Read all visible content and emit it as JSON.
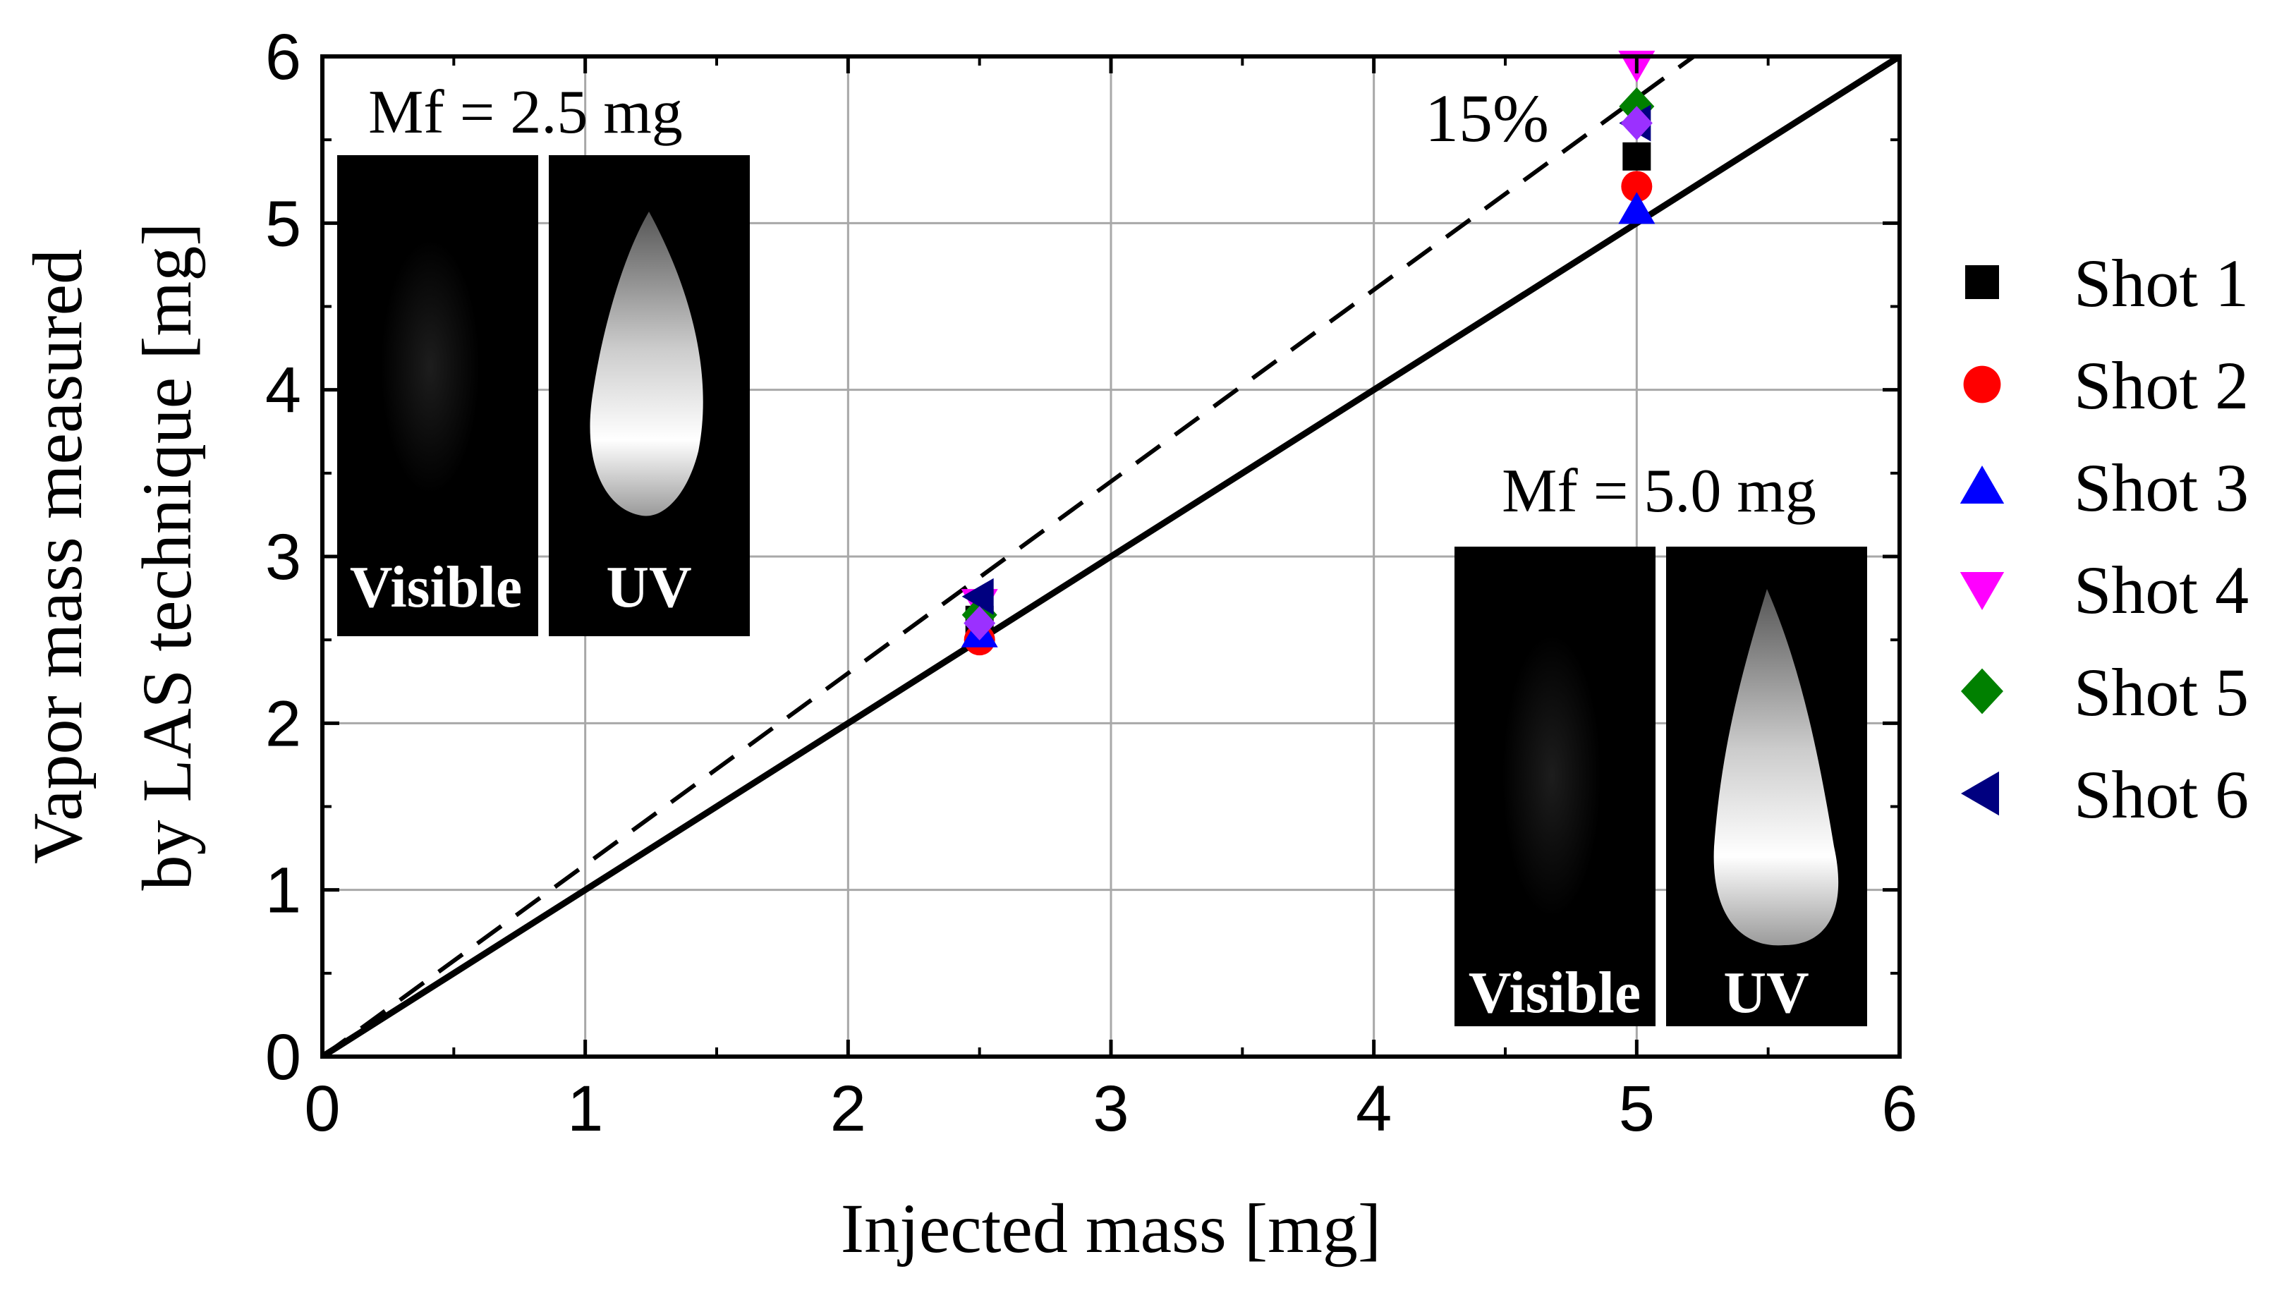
{
  "chart_data": {
    "type": "scatter",
    "title": "",
    "xlabel": "Injected mass [mg]",
    "ylabel_line1": "Vapor mass measured",
    "ylabel_line2": "by LAS technique [mg]",
    "xlim": [
      0,
      6
    ],
    "ylim": [
      0,
      6
    ],
    "xticks": [
      "0",
      "1",
      "2",
      "3",
      "4",
      "5",
      "6"
    ],
    "yticks": [
      "0",
      "1",
      "2",
      "3",
      "4",
      "5",
      "6"
    ],
    "grid": true,
    "legend_position": "right",
    "reference_lines": [
      {
        "name": "1:1 line",
        "style": "solid",
        "slope": 1.0
      },
      {
        "name": "+15% line",
        "style": "dashed",
        "slope": 1.15
      }
    ],
    "annotation": "15%",
    "series": [
      {
        "name": "Shot 1",
        "marker": "square",
        "color": "#000000",
        "points": [
          [
            2.5,
            2.62
          ],
          [
            5.0,
            5.4
          ]
        ]
      },
      {
        "name": "Shot 2",
        "marker": "circle",
        "color": "#ff0000",
        "points": [
          [
            2.5,
            2.5
          ],
          [
            5.0,
            5.22
          ]
        ]
      },
      {
        "name": "Shot 3",
        "marker": "triangle-up",
        "color": "#0000ff",
        "points": [
          [
            2.5,
            2.54
          ],
          [
            5.0,
            5.08
          ]
        ]
      },
      {
        "name": "Shot 4",
        "marker": "triangle-down",
        "color": "#ff00ff",
        "points": [
          [
            2.5,
            2.72
          ],
          [
            5.0,
            5.95
          ]
        ]
      },
      {
        "name": "Shot 5",
        "marker": "diamond",
        "color": "#008000",
        "points": [
          [
            2.5,
            2.65
          ],
          [
            5.0,
            5.7
          ]
        ]
      },
      {
        "name": "Shot 6",
        "marker": "triangle-left",
        "color": "#000080",
        "points": [
          [
            2.5,
            2.76
          ],
          [
            5.0,
            5.6
          ]
        ]
      }
    ],
    "overlay": {
      "name": "Overlay",
      "marker": "diamond",
      "color": "#9b30ff",
      "points": [
        [
          2.5,
          2.6
        ],
        [
          5.0,
          5.6
        ]
      ]
    },
    "insets": [
      {
        "title": "Mf = 2.5 mg",
        "labels": [
          "Visible",
          "UV"
        ]
      },
      {
        "title": "Mf = 5.0 mg",
        "labels": [
          "Visible",
          "UV"
        ]
      }
    ]
  }
}
